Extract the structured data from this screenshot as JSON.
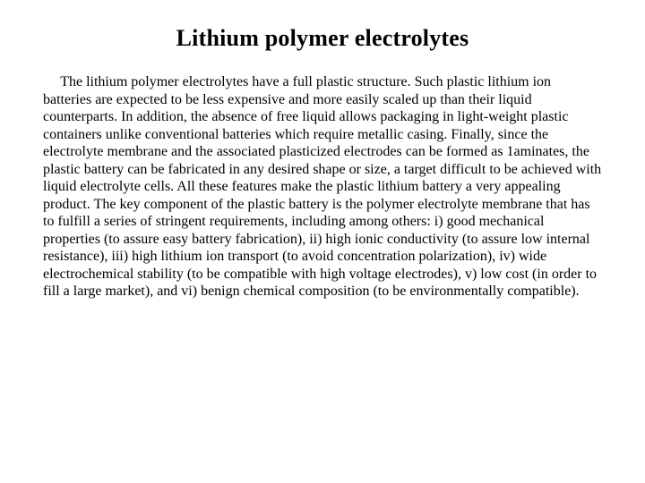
{
  "document": {
    "title": "Lithium polymer electrolytes",
    "body": "The lithium polymer electrolytes have a full plastic structure. Such plastic lithium ion batteries are expected to be less expensive and more easily scaled up than their liquid counterparts. In addition, the absence of free liquid allows packaging in light-weight plastic containers unlike conventional batteries which require metallic casing. Finally, since the electrolyte membrane and the associated plasticized electrodes can be formed as 1aminates, the plastic battery can be fabricated in any desired shape or size, a target difficult to be achieved with liquid electrolyte cells. All these features make the plastic lithium battery a very appealing product. The key component of the plastic battery is the polymer electrolyte membrane that has to fulfill a series of stringent requirements, including among others: i) good mechanical properties (to assure easy battery fabrication), ii) high ionic conductivity (to assure low internal resistance), iii) high lithium ion transport (to avoid concentration polarization), iv) wide electrochemical stability (to be compatible with high voltage electrodes), v) low cost (in order to fill a large market), and vi) benign chemical composition (to be environmentally compatible).",
    "title_fontsize": 26,
    "body_fontsize": 16,
    "font_family": "Times New Roman",
    "text_color": "#000000",
    "background_color": "#ffffff"
  }
}
